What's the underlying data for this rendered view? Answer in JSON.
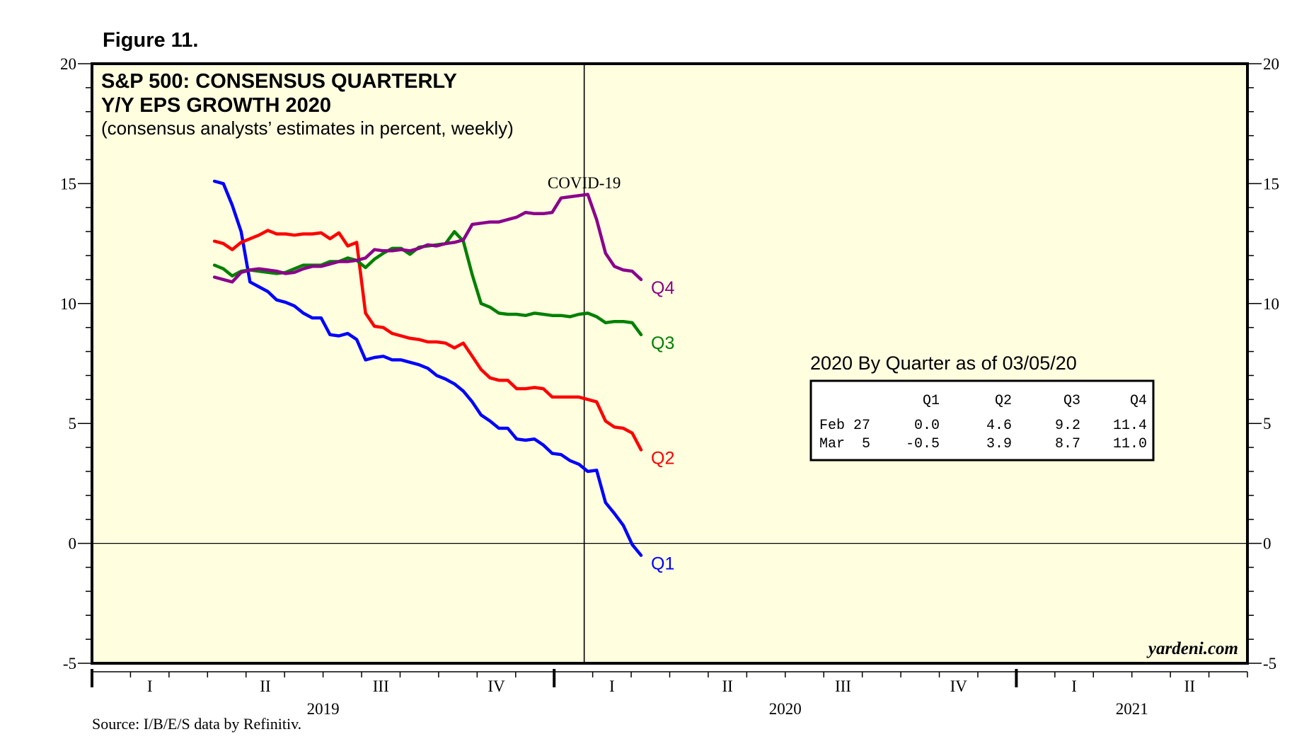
{
  "figure_label": "Figure 11.",
  "source": "Source: I/B/E/S data by Refinitiv.",
  "watermark": "yardeni.com",
  "chart_data": {
    "type": "line",
    "title": "S&P 500: CONSENSUS QUARTERLY",
    "title_line2": "Y/Y EPS GROWTH 2020",
    "subtitle": "(consensus analysts’ estimates in percent, weekly)",
    "ylim": [
      -5,
      20
    ],
    "y_ticks": [
      -5,
      0,
      5,
      10,
      15,
      20
    ],
    "y_tick_labels": [
      "-5",
      "0",
      "5",
      "10",
      "15",
      "20"
    ],
    "x_range": [
      2019.0,
      2021.5
    ],
    "quarters": [
      {
        "label": "I",
        "x": 2019.125
      },
      {
        "label": "II",
        "x": 2019.375
      },
      {
        "label": "III",
        "x": 2019.625
      },
      {
        "label": "IV",
        "x": 2019.875
      },
      {
        "label": "I",
        "x": 2020.125
      },
      {
        "label": "II",
        "x": 2020.375
      },
      {
        "label": "III",
        "x": 2020.625
      },
      {
        "label": "IV",
        "x": 2020.875
      },
      {
        "label": "I",
        "x": 2021.125
      },
      {
        "label": "II",
        "x": 2021.375
      }
    ],
    "years": [
      {
        "label": "2019",
        "x": 2019.5
      },
      {
        "label": "2020",
        "x": 2020.5
      },
      {
        "label": "2021",
        "x": 2021.25
      }
    ],
    "year_boundaries": [
      2019.0,
      2020.0,
      2021.0
    ],
    "reference_line": {
      "label": "COVID-19",
      "x": 2020.065
    },
    "colors": {
      "background": "#ffffe0",
      "Q1": "#0000ff",
      "Q2": "#ff0000",
      "Q3": "#008000",
      "Q4": "#8b008b"
    },
    "series": [
      {
        "name": "Q1",
        "label": "Q1",
        "x_start": 2019.265,
        "x_step": 0.01923,
        "values": [
          15.1,
          15.0,
          14.1,
          13.0,
          10.9,
          10.7,
          10.5,
          10.15,
          10.05,
          9.9,
          9.6,
          9.4,
          9.4,
          8.7,
          8.65,
          8.75,
          8.5,
          7.65,
          7.75,
          7.8,
          7.65,
          7.65,
          7.55,
          7.45,
          7.3,
          7.0,
          6.85,
          6.65,
          6.35,
          5.9,
          5.35,
          5.1,
          4.8,
          4.8,
          4.35,
          4.3,
          4.35,
          4.1,
          3.75,
          3.7,
          3.45,
          3.3,
          3.0,
          3.05,
          1.7,
          1.25,
          0.75,
          -0.05,
          -0.5
        ]
      },
      {
        "name": "Q2",
        "label": "Q2",
        "x_start": 2019.265,
        "x_step": 0.01923,
        "values": [
          12.6,
          12.5,
          12.25,
          12.55,
          12.7,
          12.85,
          13.05,
          12.9,
          12.9,
          12.85,
          12.9,
          12.9,
          12.95,
          12.7,
          12.95,
          12.4,
          12.55,
          9.6,
          9.05,
          9.0,
          8.75,
          8.65,
          8.55,
          8.5,
          8.4,
          8.4,
          8.35,
          8.15,
          8.35,
          7.8,
          7.25,
          6.9,
          6.8,
          6.8,
          6.45,
          6.45,
          6.5,
          6.45,
          6.1,
          6.1,
          6.1,
          6.1,
          6.0,
          5.9,
          5.1,
          4.85,
          4.8,
          4.6,
          3.9
        ]
      },
      {
        "name": "Q3",
        "label": "Q3",
        "x_start": 2019.265,
        "x_step": 0.01923,
        "values": [
          11.6,
          11.45,
          11.15,
          11.35,
          11.4,
          11.35,
          11.3,
          11.25,
          11.3,
          11.45,
          11.6,
          11.6,
          11.6,
          11.75,
          11.75,
          11.9,
          11.8,
          11.5,
          11.85,
          12.1,
          12.3,
          12.3,
          12.05,
          12.35,
          12.4,
          12.45,
          12.5,
          13.0,
          12.6,
          11.2,
          10.0,
          9.85,
          9.6,
          9.55,
          9.55,
          9.5,
          9.6,
          9.55,
          9.5,
          9.5,
          9.45,
          9.55,
          9.6,
          9.45,
          9.2,
          9.25,
          9.25,
          9.2,
          8.7
        ]
      },
      {
        "name": "Q4",
        "label": "Q4",
        "x_start": 2019.265,
        "x_step": 0.01923,
        "values": [
          11.1,
          11.0,
          10.9,
          11.3,
          11.4,
          11.45,
          11.4,
          11.35,
          11.25,
          11.3,
          11.45,
          11.55,
          11.55,
          11.65,
          11.75,
          11.75,
          11.8,
          11.9,
          12.25,
          12.2,
          12.2,
          12.25,
          12.2,
          12.3,
          12.45,
          12.4,
          12.5,
          12.55,
          12.65,
          13.3,
          13.35,
          13.4,
          13.4,
          13.5,
          13.6,
          13.8,
          13.75,
          13.75,
          13.8,
          14.4,
          14.45,
          14.5,
          14.55,
          13.5,
          12.1,
          11.55,
          11.4,
          11.35,
          11.0
        ]
      }
    ],
    "table": {
      "title": "2020 By Quarter as of 03/05/20",
      "columns": [
        "Q1",
        "Q2",
        "Q3",
        "Q4"
      ],
      "rows": [
        {
          "label": "Feb 27",
          "values": [
            "0.0",
            "4.6",
            "9.2",
            "11.4"
          ]
        },
        {
          "label": "Mar  5",
          "values": [
            "-0.5",
            "3.9",
            "8.7",
            "11.0"
          ]
        }
      ]
    }
  }
}
